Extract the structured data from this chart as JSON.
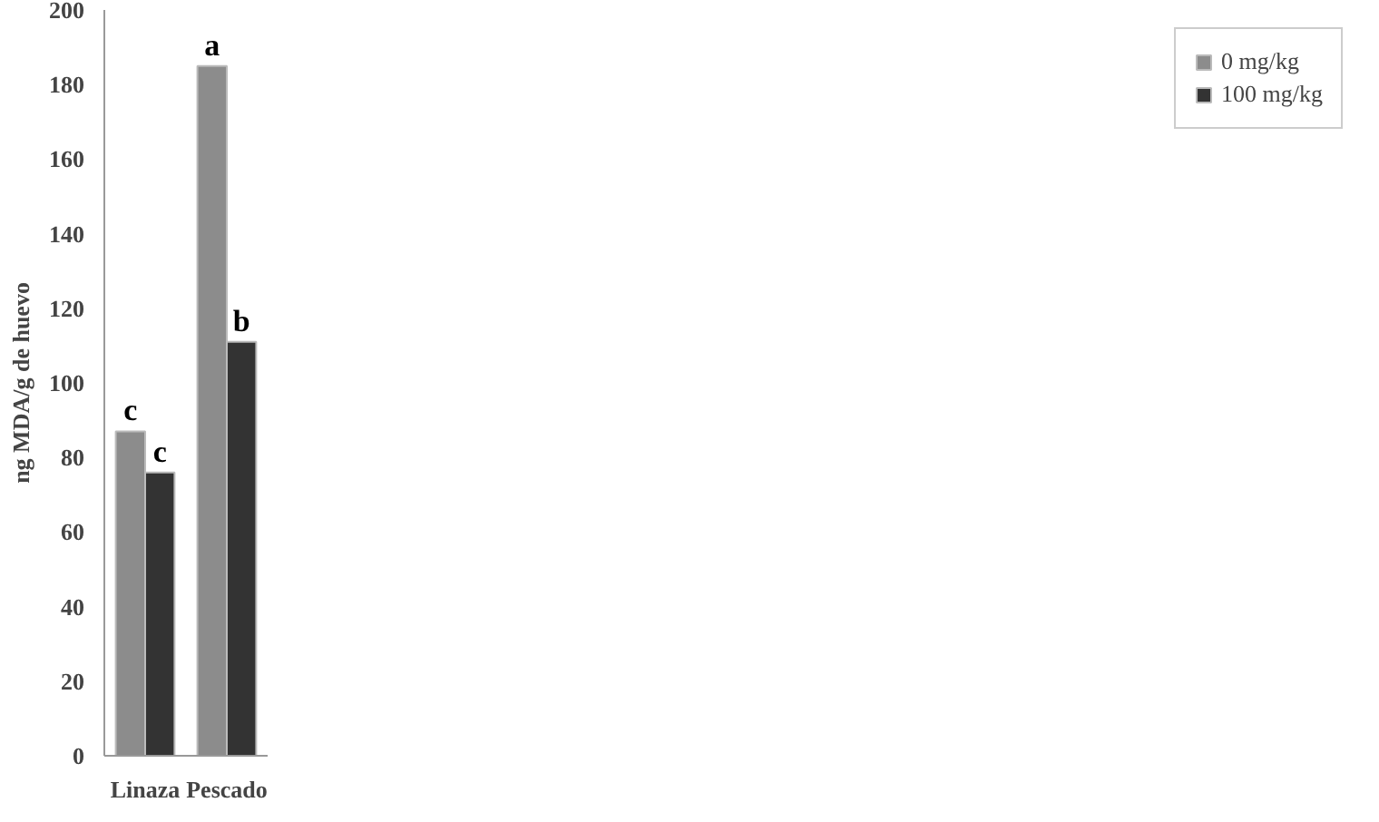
{
  "chart_data": {
    "type": "bar",
    "ylabel": "ng MDA/g de huevo",
    "categories": [
      "Linaza",
      "Pescado"
    ],
    "series": [
      {
        "name": "0 mg/kg",
        "color": "#8c8c8c",
        "values": [
          87,
          185
        ]
      },
      {
        "name": "100 mg/kg",
        "color": "#333333",
        "values": [
          76,
          111
        ]
      }
    ],
    "ylim": [
      0,
      200
    ],
    "yticks": [
      0,
      20,
      40,
      60,
      80,
      100,
      120,
      140,
      160,
      180,
      200
    ],
    "grid": false,
    "legend": "right",
    "annotations": [
      {
        "text": "c",
        "x": "Linaza",
        "y": 87
      },
      {
        "text": "c",
        "x": "Linaza",
        "y": 76
      },
      {
        "text": "a",
        "x": "Pescado",
        "y": 185
      },
      {
        "text": "b",
        "x": "Pescado",
        "y": 111
      }
    ]
  }
}
